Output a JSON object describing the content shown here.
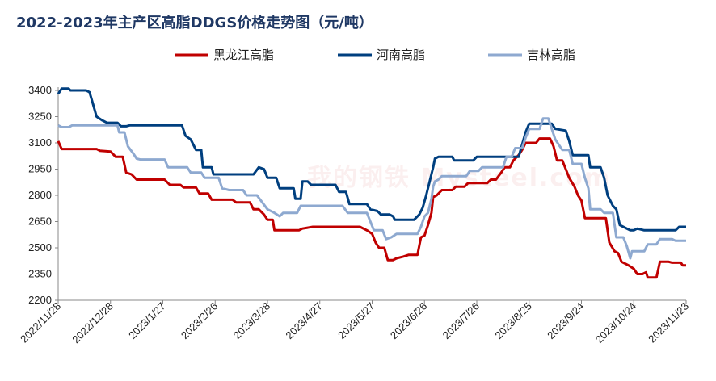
{
  "chart_data": {
    "type": "line",
    "title": "2022-2023年主产区高脂DDGS价格走势图（元/吨）",
    "watermark": "我的钢铁 Mysteel.com",
    "xlabel": "",
    "ylabel": "",
    "ylim": [
      2200,
      3400
    ],
    "yticks": [
      2200,
      2350,
      2500,
      2650,
      2800,
      2950,
      3100,
      3250,
      3400
    ],
    "xlim": [
      "2022-11-28",
      "2023-11-23"
    ],
    "xticks": [
      "2022/11/28",
      "2022/12/28",
      "2023/1/27",
      "2023/2/26",
      "2023/3/28",
      "2023/4/27",
      "2023/5/27",
      "2023/6/26",
      "2023/7/26",
      "2023/8/25",
      "2023/9/24",
      "2023/10/24",
      "2023/11/23"
    ],
    "grid": false,
    "legend_position": "top",
    "series": [
      {
        "name": "黑龙江高脂",
        "color": "#c00000",
        "points": [
          [
            "2022-11-28",
            3110
          ],
          [
            "2022-11-30",
            3065
          ],
          [
            "2022-12-20",
            3065
          ],
          [
            "2022-12-22",
            3055
          ],
          [
            "2022-12-28",
            3050
          ],
          [
            "2022-12-31",
            3020
          ],
          [
            "2023-01-04",
            3020
          ],
          [
            "2023-01-06",
            2930
          ],
          [
            "2023-01-09",
            2920
          ],
          [
            "2023-01-12",
            2890
          ],
          [
            "2023-01-28",
            2890
          ],
          [
            "2023-01-31",
            2860
          ],
          [
            "2023-02-06",
            2860
          ],
          [
            "2023-02-08",
            2845
          ],
          [
            "2023-02-15",
            2845
          ],
          [
            "2023-02-17",
            2810
          ],
          [
            "2023-02-22",
            2810
          ],
          [
            "2023-02-24",
            2775
          ],
          [
            "2023-03-08",
            2775
          ],
          [
            "2023-03-10",
            2760
          ],
          [
            "2023-03-18",
            2760
          ],
          [
            "2023-03-20",
            2720
          ],
          [
            "2023-03-23",
            2720
          ],
          [
            "2023-03-26",
            2690
          ],
          [
            "2023-03-28",
            2660
          ],
          [
            "2023-03-31",
            2660
          ],
          [
            "2023-04-01",
            2600
          ],
          [
            "2023-04-15",
            2600
          ],
          [
            "2023-04-17",
            2610
          ],
          [
            "2023-04-20",
            2615
          ],
          [
            "2023-04-23",
            2620
          ],
          [
            "2023-05-20",
            2620
          ],
          [
            "2023-05-24",
            2600
          ],
          [
            "2023-05-27",
            2580
          ],
          [
            "2023-05-29",
            2530
          ],
          [
            "2023-05-31",
            2500
          ],
          [
            "2023-06-03",
            2500
          ],
          [
            "2023-06-05",
            2430
          ],
          [
            "2023-06-08",
            2430
          ],
          [
            "2023-06-10",
            2440
          ],
          [
            "2023-06-14",
            2450
          ],
          [
            "2023-06-17",
            2460
          ],
          [
            "2023-06-22",
            2460
          ],
          [
            "2023-06-24",
            2560
          ],
          [
            "2023-06-26",
            2570
          ],
          [
            "2023-06-28",
            2630
          ],
          [
            "2023-06-30",
            2700
          ],
          [
            "2023-07-01",
            2790
          ],
          [
            "2023-07-03",
            2800
          ],
          [
            "2023-07-06",
            2830
          ],
          [
            "2023-07-12",
            2830
          ],
          [
            "2023-07-14",
            2850
          ],
          [
            "2023-07-19",
            2850
          ],
          [
            "2023-07-21",
            2870
          ],
          [
            "2023-08-01",
            2870
          ],
          [
            "2023-08-03",
            2890
          ],
          [
            "2023-08-06",
            2890
          ],
          [
            "2023-08-09",
            2930
          ],
          [
            "2023-08-11",
            2960
          ],
          [
            "2023-08-14",
            2960
          ],
          [
            "2023-08-16",
            3000
          ],
          [
            "2023-08-19",
            3030
          ],
          [
            "2023-08-21",
            3060
          ],
          [
            "2023-08-23",
            3100
          ],
          [
            "2023-08-29",
            3100
          ],
          [
            "2023-08-31",
            3125
          ],
          [
            "2023-09-06",
            3125
          ],
          [
            "2023-09-08",
            3080
          ],
          [
            "2023-09-10",
            3000
          ],
          [
            "2023-09-13",
            3000
          ],
          [
            "2023-09-15",
            2950
          ],
          [
            "2023-09-17",
            2900
          ],
          [
            "2023-09-20",
            2850
          ],
          [
            "2023-09-22",
            2800
          ],
          [
            "2023-09-24",
            2770
          ],
          [
            "2023-09-26",
            2670
          ],
          [
            "2023-10-08",
            2670
          ],
          [
            "2023-10-10",
            2530
          ],
          [
            "2023-10-13",
            2480
          ],
          [
            "2023-10-15",
            2470
          ],
          [
            "2023-10-17",
            2420
          ],
          [
            "2023-10-21",
            2400
          ],
          [
            "2023-10-24",
            2380
          ],
          [
            "2023-10-26",
            2350
          ],
          [
            "2023-10-29",
            2350
          ],
          [
            "2023-10-31",
            2360
          ],
          [
            "2023-11-01",
            2330
          ],
          [
            "2023-11-06",
            2330
          ],
          [
            "2023-11-08",
            2420
          ],
          [
            "2023-11-13",
            2420
          ],
          [
            "2023-11-15",
            2415
          ],
          [
            "2023-11-20",
            2415
          ],
          [
            "2023-11-21",
            2400
          ],
          [
            "2023-11-23",
            2400
          ]
        ]
      },
      {
        "name": "河南高脂",
        "color": "#003f7f",
        "points": [
          [
            "2022-11-28",
            3380
          ],
          [
            "2022-11-30",
            3410
          ],
          [
            "2022-12-04",
            3410
          ],
          [
            "2022-12-05",
            3400
          ],
          [
            "2022-12-14",
            3400
          ],
          [
            "2022-12-16",
            3390
          ],
          [
            "2022-12-18",
            3320
          ],
          [
            "2022-12-20",
            3250
          ],
          [
            "2022-12-23",
            3230
          ],
          [
            "2022-12-26",
            3215
          ],
          [
            "2023-01-01",
            3215
          ],
          [
            "2023-01-03",
            3195
          ],
          [
            "2023-01-06",
            3195
          ],
          [
            "2023-01-08",
            3200
          ],
          [
            "2023-02-07",
            3200
          ],
          [
            "2023-02-09",
            3140
          ],
          [
            "2023-02-12",
            3120
          ],
          [
            "2023-02-15",
            3060
          ],
          [
            "2023-02-18",
            3060
          ],
          [
            "2023-02-19",
            2960
          ],
          [
            "2023-02-24",
            2960
          ],
          [
            "2023-02-25",
            2920
          ],
          [
            "2023-03-20",
            2920
          ],
          [
            "2023-03-23",
            2960
          ],
          [
            "2023-03-26",
            2950
          ],
          [
            "2023-03-28",
            2900
          ],
          [
            "2023-04-02",
            2900
          ],
          [
            "2023-04-04",
            2840
          ],
          [
            "2023-04-12",
            2840
          ],
          [
            "2023-04-13",
            2780
          ],
          [
            "2023-04-16",
            2780
          ],
          [
            "2023-04-17",
            2880
          ],
          [
            "2023-04-20",
            2880
          ],
          [
            "2023-04-22",
            2860
          ],
          [
            "2023-05-06",
            2860
          ],
          [
            "2023-05-08",
            2820
          ],
          [
            "2023-05-12",
            2820
          ],
          [
            "2023-05-14",
            2750
          ],
          [
            "2023-05-24",
            2750
          ],
          [
            "2023-05-26",
            2720
          ],
          [
            "2023-05-30",
            2710
          ],
          [
            "2023-06-01",
            2690
          ],
          [
            "2023-06-06",
            2690
          ],
          [
            "2023-06-08",
            2680
          ],
          [
            "2023-06-09",
            2660
          ],
          [
            "2023-06-20",
            2660
          ],
          [
            "2023-06-23",
            2690
          ],
          [
            "2023-06-25",
            2730
          ],
          [
            "2023-06-27",
            2800
          ],
          [
            "2023-06-29",
            2880
          ],
          [
            "2023-07-01",
            2960
          ],
          [
            "2023-07-02",
            3010
          ],
          [
            "2023-07-04",
            3020
          ],
          [
            "2023-07-12",
            3020
          ],
          [
            "2023-07-13",
            3000
          ],
          [
            "2023-07-24",
            3000
          ],
          [
            "2023-07-26",
            3020
          ],
          [
            "2023-08-19",
            3020
          ],
          [
            "2023-08-21",
            3090
          ],
          [
            "2023-08-23",
            3160
          ],
          [
            "2023-08-25",
            3210
          ],
          [
            "2023-09-07",
            3210
          ],
          [
            "2023-09-09",
            3180
          ],
          [
            "2023-09-15",
            3170
          ],
          [
            "2023-09-17",
            3110
          ],
          [
            "2023-09-19",
            3030
          ],
          [
            "2023-09-28",
            3030
          ],
          [
            "2023-09-29",
            2960
          ],
          [
            "2023-10-05",
            2960
          ],
          [
            "2023-10-07",
            2900
          ],
          [
            "2023-10-09",
            2800
          ],
          [
            "2023-10-12",
            2740
          ],
          [
            "2023-10-14",
            2720
          ],
          [
            "2023-10-16",
            2630
          ],
          [
            "2023-10-18",
            2620
          ],
          [
            "2023-10-22",
            2600
          ],
          [
            "2023-10-24",
            2600
          ],
          [
            "2023-10-26",
            2610
          ],
          [
            "2023-10-30",
            2600
          ],
          [
            "2023-11-17",
            2600
          ],
          [
            "2023-11-19",
            2620
          ],
          [
            "2023-11-23",
            2620
          ]
        ]
      },
      {
        "name": "吉林高脂",
        "color": "#8ea9d0",
        "points": [
          [
            "2022-11-28",
            3200
          ],
          [
            "2022-11-30",
            3190
          ],
          [
            "2022-12-04",
            3190
          ],
          [
            "2022-12-06",
            3200
          ],
          [
            "2023-01-01",
            3200
          ],
          [
            "2023-01-02",
            3160
          ],
          [
            "2023-01-05",
            3160
          ],
          [
            "2023-01-07",
            3080
          ],
          [
            "2023-01-10",
            3040
          ],
          [
            "2023-01-12",
            3010
          ],
          [
            "2023-01-14",
            3005
          ],
          [
            "2023-01-28",
            3005
          ],
          [
            "2023-01-30",
            2960
          ],
          [
            "2023-02-10",
            2960
          ],
          [
            "2023-02-12",
            2930
          ],
          [
            "2023-02-18",
            2930
          ],
          [
            "2023-02-20",
            2900
          ],
          [
            "2023-02-28",
            2900
          ],
          [
            "2023-03-02",
            2840
          ],
          [
            "2023-03-06",
            2830
          ],
          [
            "2023-03-14",
            2830
          ],
          [
            "2023-03-16",
            2800
          ],
          [
            "2023-03-22",
            2800
          ],
          [
            "2023-03-25",
            2760
          ],
          [
            "2023-03-28",
            2720
          ],
          [
            "2023-04-01",
            2700
          ],
          [
            "2023-04-04",
            2680
          ],
          [
            "2023-04-06",
            2700
          ],
          [
            "2023-04-14",
            2700
          ],
          [
            "2023-04-16",
            2740
          ],
          [
            "2023-05-10",
            2740
          ],
          [
            "2023-05-13",
            2700
          ],
          [
            "2023-05-24",
            2700
          ],
          [
            "2023-05-26",
            2650
          ],
          [
            "2023-05-28",
            2600
          ],
          [
            "2023-06-02",
            2600
          ],
          [
            "2023-06-04",
            2550
          ],
          [
            "2023-06-07",
            2560
          ],
          [
            "2023-06-10",
            2580
          ],
          [
            "2023-06-22",
            2580
          ],
          [
            "2023-06-24",
            2620
          ],
          [
            "2023-06-26",
            2680
          ],
          [
            "2023-06-28",
            2700
          ],
          [
            "2023-06-30",
            2780
          ],
          [
            "2023-07-01",
            2850
          ],
          [
            "2023-07-02",
            2880
          ],
          [
            "2023-07-04",
            2890
          ],
          [
            "2023-07-06",
            2910
          ],
          [
            "2023-07-20",
            2910
          ],
          [
            "2023-07-22",
            2940
          ],
          [
            "2023-07-27",
            2940
          ],
          [
            "2023-07-29",
            2960
          ],
          [
            "2023-08-10",
            2960
          ],
          [
            "2023-08-12",
            3020
          ],
          [
            "2023-08-15",
            3020
          ],
          [
            "2023-08-17",
            3070
          ],
          [
            "2023-08-21",
            3070
          ],
          [
            "2023-08-23",
            3130
          ],
          [
            "2023-08-25",
            3180
          ],
          [
            "2023-08-31",
            3180
          ],
          [
            "2023-09-02",
            3240
          ],
          [
            "2023-09-05",
            3240
          ],
          [
            "2023-09-07",
            3180
          ],
          [
            "2023-09-09",
            3120
          ],
          [
            "2023-09-13",
            3060
          ],
          [
            "2023-09-17",
            3060
          ],
          [
            "2023-09-19",
            2980
          ],
          [
            "2023-09-24",
            2980
          ],
          [
            "2023-09-26",
            2900
          ],
          [
            "2023-09-28",
            2840
          ],
          [
            "2023-09-29",
            2720
          ],
          [
            "2023-10-05",
            2720
          ],
          [
            "2023-10-07",
            2700
          ],
          [
            "2023-10-12",
            2700
          ],
          [
            "2023-10-14",
            2560
          ],
          [
            "2023-10-18",
            2560
          ],
          [
            "2023-10-20",
            2510
          ],
          [
            "2023-10-22",
            2440
          ],
          [
            "2023-10-23",
            2480
          ],
          [
            "2023-10-30",
            2480
          ],
          [
            "2023-11-01",
            2520
          ],
          [
            "2023-11-06",
            2520
          ],
          [
            "2023-11-08",
            2550
          ],
          [
            "2023-11-15",
            2550
          ],
          [
            "2023-11-17",
            2540
          ],
          [
            "2023-11-23",
            2540
          ]
        ]
      }
    ]
  }
}
